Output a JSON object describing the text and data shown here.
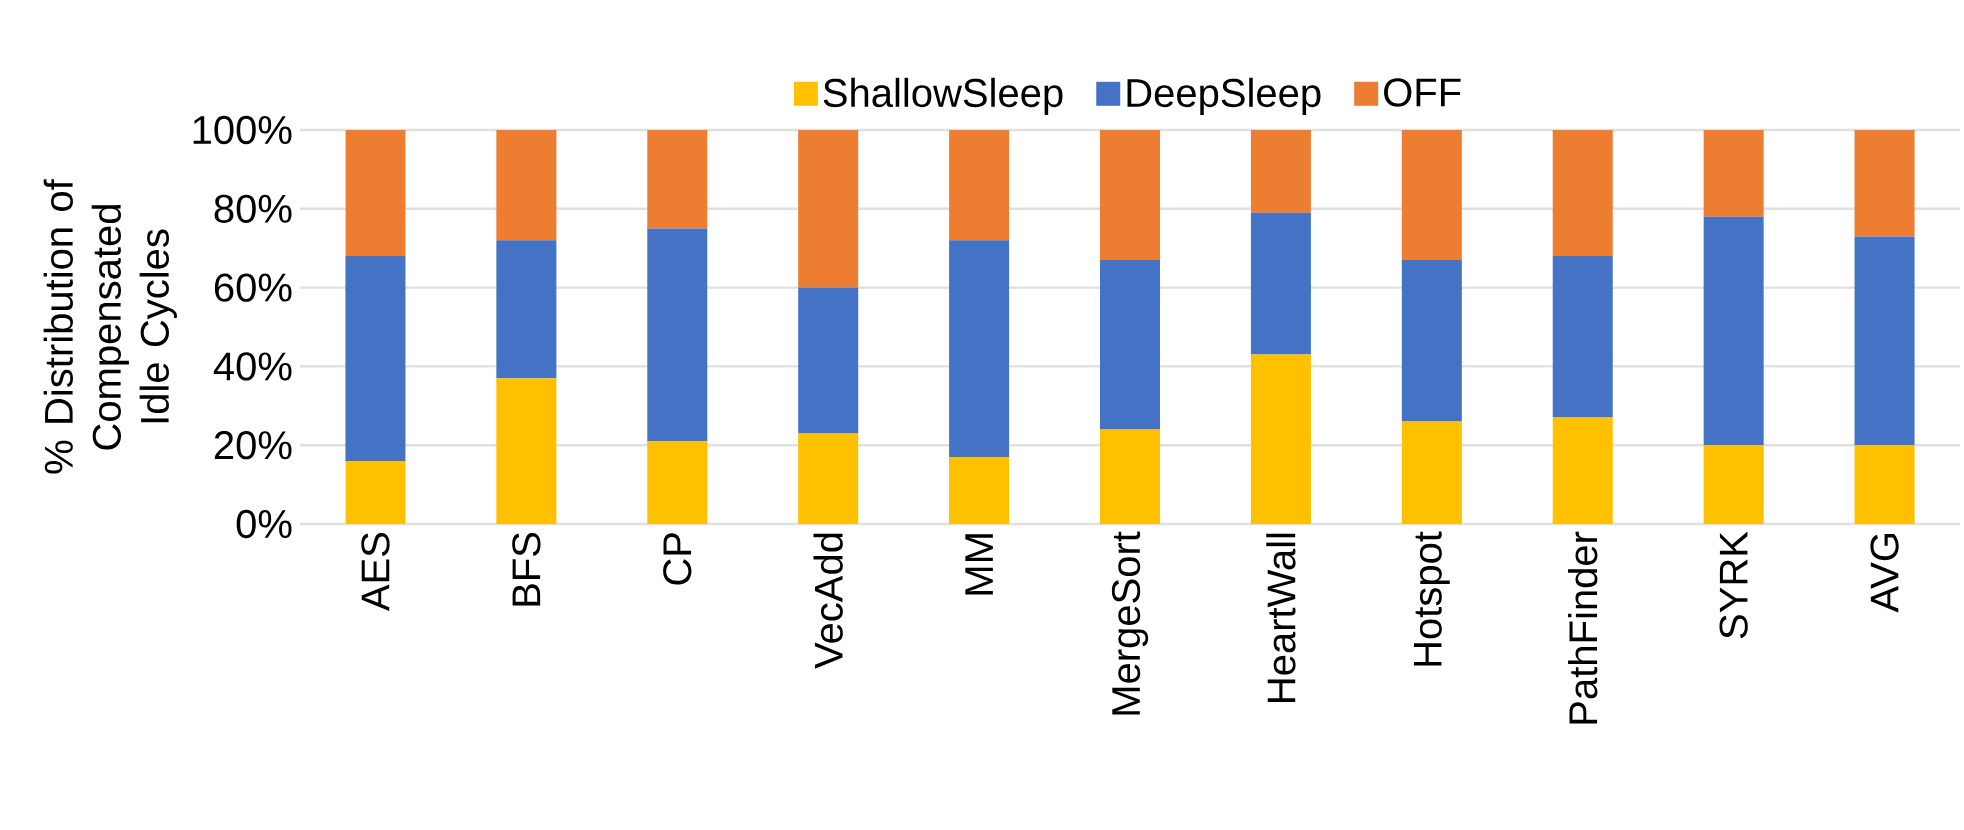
{
  "chart_data": {
    "type": "bar",
    "stacked": true,
    "ylabel": "% Distribution of Compensated Idle Cycles",
    "categories": [
      "AES",
      "BFS",
      "CP",
      "VecAdd",
      "MM",
      "MergeSort",
      "HeartWall",
      "Hotspot",
      "PathFinder",
      "SYRK",
      "AVG"
    ],
    "series": [
      {
        "name": "ShallowSleep",
        "color": "#ffc000",
        "values": [
          16,
          37,
          21,
          23,
          17,
          24,
          43,
          26,
          27,
          20,
          20
        ]
      },
      {
        "name": "DeepSleep",
        "color": "#4472c4",
        "values": [
          52,
          35,
          54,
          37,
          55,
          43,
          36,
          41,
          41,
          58,
          53
        ]
      },
      {
        "name": "OFF",
        "color": "#ed7d31",
        "values": [
          32,
          28,
          25,
          40,
          28,
          33,
          21,
          33,
          32,
          22,
          27
        ]
      }
    ],
    "ylim": [
      0,
      100
    ],
    "yticks": [
      {
        "value": 0,
        "label": "0%"
      },
      {
        "value": 20,
        "label": "20%"
      },
      {
        "value": 40,
        "label": "40%"
      },
      {
        "value": 60,
        "label": "60%"
      },
      {
        "value": 80,
        "label": "80%"
      },
      {
        "value": 100,
        "label": "100%"
      }
    ],
    "grid": "y",
    "legend": "top"
  }
}
